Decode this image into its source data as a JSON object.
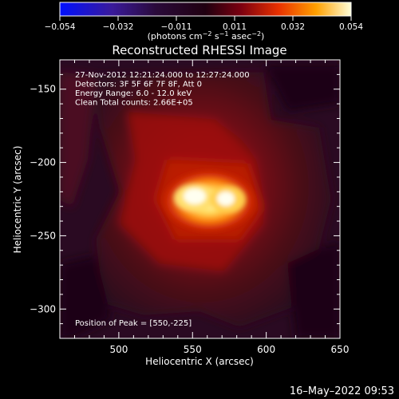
{
  "colorbar": {
    "ticks": [
      "−0.054",
      "−0.032",
      "−0.011",
      "0.011",
      "0.032",
      "0.054"
    ],
    "units_prefix": "(photons cm",
    "units_exp1": "−2",
    "units_mid": " s",
    "units_exp2": "−1",
    "units_mid2": " asec",
    "units_exp3": "−2",
    "units_suffix": ")"
  },
  "chart_data": {
    "type": "heatmap",
    "title": "Reconstructed RHESSI Image",
    "xlabel": "Heliocentric X (arcsec)",
    "ylabel": "Heliocentric Y (arcsec)",
    "xlim": [
      460,
      650
    ],
    "ylim": [
      -320,
      -130
    ],
    "xticks": [
      500,
      550,
      600,
      650
    ],
    "yticks": [
      -150,
      -200,
      -250,
      -300
    ],
    "color_range": [
      -0.054,
      0.054
    ],
    "colormap": "hot (blue-black-red-yellow-white)",
    "annotations": [
      "27-Nov-2012 12:21:24.000 to 12:27:24.000",
      "Detectors: 3F 5F 6F 7F 8F, Att 0",
      "Energy Range: 6.0 - 12.0 keV",
      "Clean     Total counts: 2.66E+05"
    ],
    "peak": {
      "label": "Position of Peak = [550,-225]",
      "x": 550,
      "y": -225
    }
  },
  "footer": {
    "timestamp": "16–May–2022 09:53"
  }
}
